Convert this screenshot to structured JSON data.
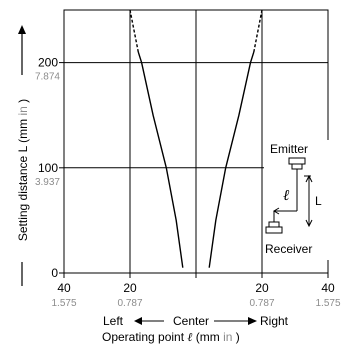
{
  "chart_data": {
    "type": "line",
    "title": "",
    "xlabel": {
      "prefix": "Operating point",
      "symbol": "ℓ",
      "unit_open": "(mm",
      "unit_alt": "in",
      "unit_close": ")"
    },
    "ylabel": {
      "text": "Setting distance L",
      "unit_open": "(mm",
      "unit_alt": "in",
      "unit_close": ")"
    },
    "direction_labels": {
      "left": "Left",
      "center": "Center",
      "right": "Right"
    },
    "xlim": [
      -40,
      40
    ],
    "ylim": [
      0,
      250
    ],
    "x_ticks": [
      {
        "value": -40,
        "mm": "40",
        "inch": "1.575"
      },
      {
        "value": -20,
        "mm": "20",
        "inch": "0.787"
      },
      {
        "value": 20,
        "mm": "20",
        "inch": "0.787"
      },
      {
        "value": 40,
        "mm": "40",
        "inch": "1.575"
      }
    ],
    "y_ticks": [
      {
        "value": 0,
        "mm": "0",
        "inch": ""
      },
      {
        "value": 100,
        "mm": "100",
        "inch": "3.937"
      },
      {
        "value": 200,
        "mm": "200",
        "inch": "7.874"
      }
    ],
    "grid": true,
    "series": [
      {
        "side": "left",
        "solid": [
          [
            -4,
            5
          ],
          [
            -6,
            50
          ],
          [
            -9,
            100
          ],
          [
            -13,
            150
          ],
          [
            -16.5,
            200
          ],
          [
            -17.5,
            210
          ]
        ],
        "dashed": [
          [
            -17.5,
            210
          ],
          [
            -20,
            250
          ]
        ]
      },
      {
        "side": "right",
        "solid": [
          [
            4,
            5
          ],
          [
            6,
            50
          ],
          [
            9,
            100
          ],
          [
            13,
            150
          ],
          [
            16.5,
            200
          ],
          [
            17.5,
            210
          ]
        ],
        "dashed": [
          [
            17.5,
            210
          ],
          [
            20,
            250
          ]
        ]
      }
    ],
    "inset": {
      "emitter_label": "Emitter",
      "receiver_label": "Receiver",
      "operating_point_symbol": "ℓ",
      "distance_symbol": "L"
    }
  }
}
